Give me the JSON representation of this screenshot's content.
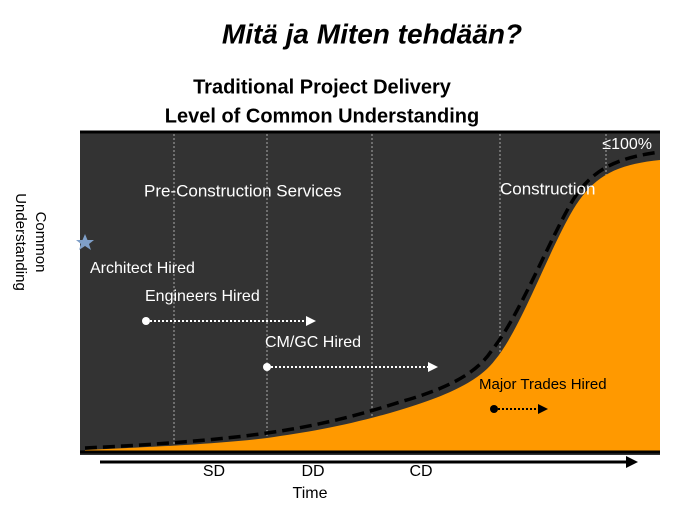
{
  "title": "Mitä ja Miten tehdään?",
  "chart": {
    "title_lines": [
      "Traditional Project Delivery",
      "Level of Common Understanding"
    ],
    "y_label": [
      "Common",
      "Understanding"
    ],
    "max_label": "≤100%",
    "phases": [
      "Pre-Construction Services",
      "Construction"
    ],
    "milestones": [
      "Architect Hired",
      "Engineers Hired",
      "CM/GC Hired",
      "Major Trades Hired"
    ],
    "stages": [
      "SD",
      "DD",
      "CD"
    ],
    "x_label": "Time"
  }
}
